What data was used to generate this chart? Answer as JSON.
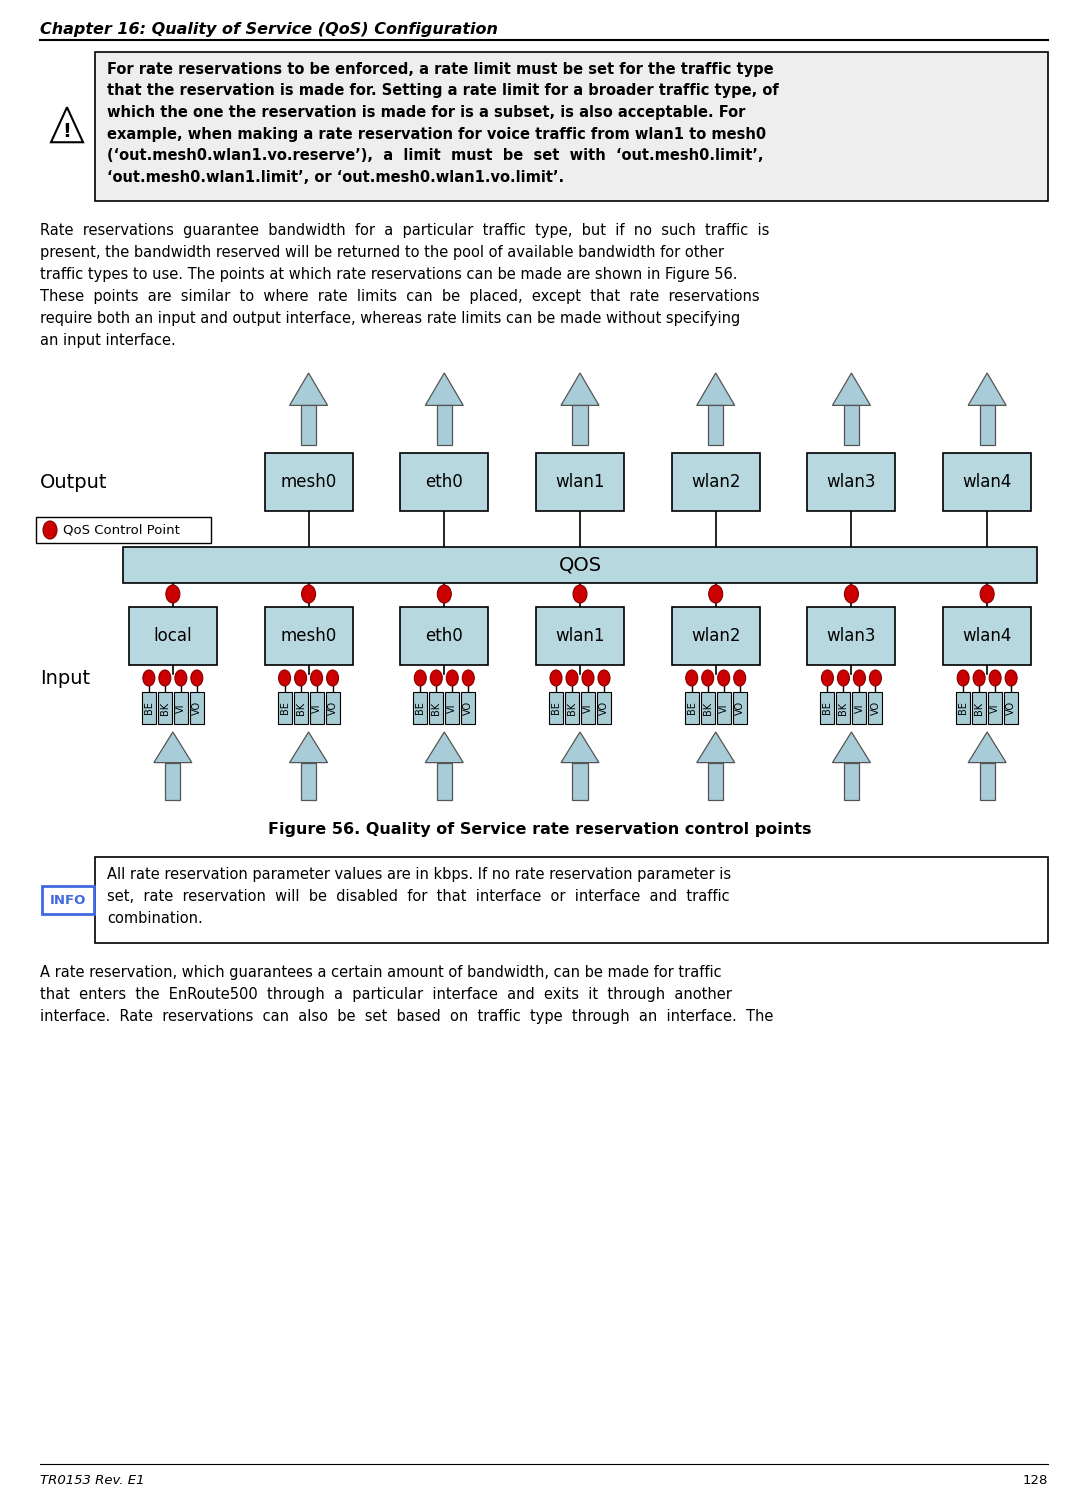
{
  "page_title": "Chapter 16: Quality of Service (QoS) Configuration",
  "page_number": "128",
  "footer_left": "TR0153 Rev. E1",
  "output_labels": [
    "mesh0",
    "eth0",
    "wlan1",
    "wlan2",
    "wlan3",
    "wlan4"
  ],
  "input_labels": [
    "local",
    "mesh0",
    "eth0",
    "wlan1",
    "wlan2",
    "wlan3",
    "wlan4"
  ],
  "qos_label": "QOS",
  "traffic_types": [
    "BE",
    "BK",
    "VI",
    "VO"
  ],
  "figure_caption": "Figure 56. Quality of Service rate reservation control points",
  "warning_lines": [
    "For rate reservations to be enforced, a rate limit must be set for the traffic type",
    "that the reservation is made for. Setting a rate limit for a broader traffic type, of",
    "which the one the reservation is made for is a subset, is also acceptable. For",
    "example, when making a rate reservation for voice traffic from wlan1 to mesh0",
    "(‘out.mesh0.wlan1.vo.reserve’),  a  limit  must  be  set  with  ‘out.mesh0.limit’,",
    "‘out.mesh0.wlan1.limit’, or ‘out.mesh0.wlan1.vo.limit’."
  ],
  "para1_lines": [
    "Rate  reservations  guarantee  bandwidth  for  a  particular  traffic  type,  but  if  no  such  traffic  is",
    "present, the bandwidth reserved will be returned to the pool of available bandwidth for other",
    "traffic types to use. The points at which rate reservations can be made are shown in Figure 56.",
    "These  points  are  similar  to  where  rate  limits  can  be  placed,  except  that  rate  reservations",
    "require both an input and output interface, whereas rate limits can be made without specifying",
    "an input interface."
  ],
  "info_lines": [
    "All rate reservation parameter values are in kbps. If no rate reservation parameter is",
    "set,  rate  reservation  will  be  disabled  for  that  interface  or  interface  and  traffic",
    "combination."
  ],
  "para2_lines": [
    "A rate reservation, which guarantees a certain amount of bandwidth, can be made for traffic",
    "that  enters  the  EnRoute500  through  a  particular  interface  and  exits  it  through  another",
    "interface.  Rate  reservations  can  also  be  set  based  on  traffic  type  through  an  interface.  The"
  ],
  "box_fill": "#b8d8df",
  "qos_fill": "#b8d8df",
  "arrow_color": "#a8cdd8",
  "dot_color": "#cc0000",
  "dot_edge": "#880000",
  "bg_color": "#ffffff",
  "warning_bg": "#eeeeee",
  "info_border": "#4169e1",
  "text_color": "#000000",
  "box_edge": "#000000"
}
